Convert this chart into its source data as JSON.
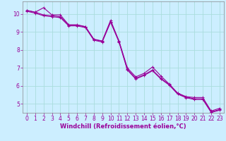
{
  "title": "",
  "xlabel": "Windchill (Refroidissement éolien,°C)",
  "ylabel": "",
  "bg_color": "#cceeff",
  "grid_color": "#aadddd",
  "line_color": "#990099",
  "xlim": [
    -0.5,
    23.5
  ],
  "ylim": [
    4.5,
    10.7
  ],
  "xticks": [
    0,
    1,
    2,
    3,
    4,
    5,
    6,
    7,
    8,
    9,
    10,
    11,
    12,
    13,
    14,
    15,
    16,
    17,
    18,
    19,
    20,
    21,
    22,
    23
  ],
  "yticks": [
    5,
    6,
    7,
    8,
    9,
    10
  ],
  "line1_y": [
    10.2,
    10.1,
    10.35,
    9.95,
    9.95,
    9.4,
    9.4,
    9.3,
    8.6,
    8.5,
    9.65,
    8.5,
    7.0,
    6.5,
    6.7,
    7.05,
    6.55,
    6.1,
    5.6,
    5.4,
    5.35,
    5.35,
    4.6,
    4.75
  ],
  "line2_y": [
    10.2,
    10.1,
    9.95,
    9.9,
    9.85,
    9.38,
    9.38,
    9.28,
    8.58,
    8.48,
    9.58,
    8.48,
    6.92,
    6.42,
    6.62,
    6.88,
    6.42,
    6.08,
    5.58,
    5.38,
    5.28,
    5.28,
    4.55,
    4.68
  ],
  "line3_y": [
    10.15,
    10.05,
    9.9,
    9.85,
    9.8,
    9.34,
    9.34,
    9.24,
    8.54,
    8.44,
    9.54,
    8.44,
    6.88,
    6.38,
    6.58,
    6.84,
    6.38,
    6.04,
    5.54,
    5.34,
    5.24,
    5.24,
    4.52,
    4.64
  ],
  "marker": "+",
  "markersize": 3,
  "linewidth": 0.8,
  "tick_fontsize": 5.5,
  "xlabel_fontsize": 6.0
}
